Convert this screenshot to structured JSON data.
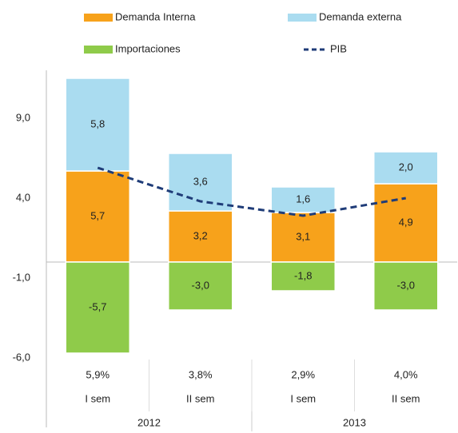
{
  "chart_data": {
    "type": "stacked-bar-line",
    "categories": [
      "I sem",
      "II sem",
      "I sem",
      "II sem"
    ],
    "groups": [
      {
        "label": "2012",
        "span": 2
      },
      {
        "label": "2013",
        "span": 2
      }
    ],
    "series": [
      {
        "name": "Demanda Interna",
        "color": "#f7a21b",
        "kind": "bar",
        "values": [
          5.7,
          3.2,
          3.1,
          4.9
        ],
        "value_labels": [
          "5,7",
          "3,2",
          "3,1",
          "4,9"
        ]
      },
      {
        "name": "Demanda externa",
        "color": "#aadcf0",
        "kind": "bar",
        "values": [
          5.8,
          3.6,
          1.6,
          2.0
        ],
        "value_labels": [
          "5,8",
          "3,6",
          "1,6",
          "2,0"
        ]
      },
      {
        "name": "Importaciones",
        "color": "#8fcb4a",
        "kind": "bar",
        "values": [
          -5.7,
          -3.0,
          -1.8,
          -3.0
        ],
        "value_labels": [
          "-5,7",
          "-3,0",
          "-1,8",
          "-3,0"
        ]
      },
      {
        "name": "PIB",
        "color": "#1f3c78",
        "kind": "line",
        "dashed": true,
        "values": [
          5.9,
          3.8,
          2.9,
          4.0
        ],
        "value_labels": [
          "5,9%",
          "3,8%",
          "2,9%",
          "4,0%"
        ]
      }
    ],
    "ylim": [
      -6,
      12
    ],
    "yticks": [
      {
        "value": 9,
        "label": "9,0"
      },
      {
        "value": 4,
        "label": "4,0"
      },
      {
        "value": -1,
        "label": "-1,0"
      },
      {
        "value": -6,
        "label": "-6,0"
      }
    ],
    "legend": "top"
  }
}
